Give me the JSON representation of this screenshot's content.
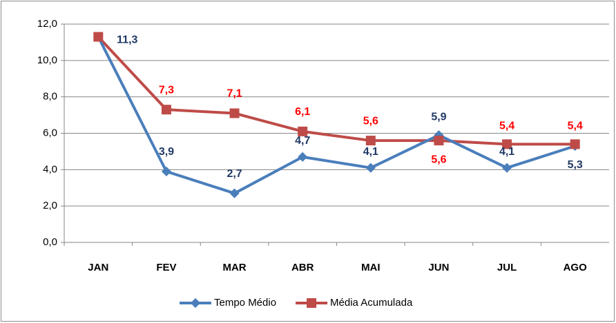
{
  "chart_data": {
    "type": "line",
    "categories": [
      "JAN",
      "FEV",
      "MAR",
      "ABR",
      "MAI",
      "JUN",
      "JUL",
      "AGO"
    ],
    "series": [
      {
        "name": "Tempo Médio",
        "color": "#4a7ebb",
        "label_color": "#1f3864",
        "values": [
          11.3,
          3.9,
          2.7,
          4.7,
          4.1,
          5.9,
          4.1,
          5.3
        ],
        "value_labels": [
          "11,3",
          "3,9",
          "2,7",
          "4,7",
          "4,1",
          "5,9",
          "4,1",
          "5,3"
        ]
      },
      {
        "name": "Média Acumulada",
        "color": "#be4b48",
        "label_color": "#ff0000",
        "values": [
          11.3,
          7.3,
          7.1,
          6.1,
          5.6,
          5.6,
          5.4,
          5.4
        ],
        "value_labels": [
          null,
          "7,3",
          "7,1",
          "6,1",
          "5,6",
          "5,6",
          "5,4",
          "5,4"
        ]
      }
    ],
    "ylim": [
      0,
      12
    ],
    "yticks": [
      {
        "value": 0,
        "label": "0,0"
      },
      {
        "value": 2,
        "label": "2,0"
      },
      {
        "value": 4,
        "label": "4,0"
      },
      {
        "value": 6,
        "label": "6,0"
      },
      {
        "value": 8,
        "label": "8,0"
      },
      {
        "value": 10,
        "label": "10,0"
      },
      {
        "value": 12,
        "label": "12,0"
      }
    ],
    "grid": true,
    "legend": "bottom"
  }
}
